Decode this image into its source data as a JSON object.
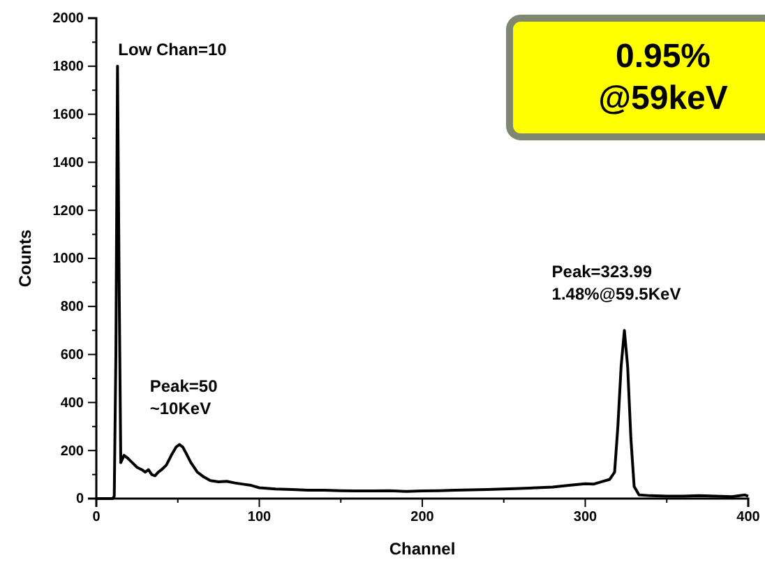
{
  "chart_data": {
    "type": "line",
    "xlabel": "Channel",
    "ylabel": "Counts",
    "xlim": [
      0,
      400
    ],
    "xticks": [
      0,
      100,
      200,
      300,
      400
    ],
    "ylim": [
      0,
      2000
    ],
    "yticks": [
      0,
      200,
      400,
      600,
      800,
      1000,
      1200,
      1400,
      1600,
      1800,
      2000
    ],
    "grid": false,
    "marker": "none",
    "line_style": "solid",
    "series": [
      {
        "color": "#000000",
        "x": [
          0,
          10,
          11,
          12,
          13,
          14,
          15,
          17,
          19,
          22,
          25,
          28,
          30,
          32,
          34,
          36,
          38,
          40,
          43,
          46,
          49,
          51,
          53,
          55,
          58,
          62,
          66,
          70,
          75,
          80,
          85,
          90,
          95,
          100,
          110,
          120,
          130,
          140,
          150,
          160,
          170,
          180,
          190,
          200,
          210,
          220,
          230,
          240,
          250,
          260,
          270,
          280,
          290,
          300,
          305,
          310,
          315,
          318,
          320,
          322,
          324,
          326,
          328,
          330,
          333,
          340,
          350,
          360,
          370,
          380,
          390,
          398,
          400
        ],
        "values": [
          0,
          0,
          10,
          600,
          1800,
          900,
          150,
          180,
          170,
          150,
          130,
          120,
          110,
          120,
          100,
          95,
          110,
          120,
          140,
          180,
          215,
          225,
          215,
          190,
          150,
          110,
          90,
          75,
          70,
          72,
          65,
          60,
          55,
          45,
          40,
          38,
          35,
          35,
          33,
          32,
          32,
          33,
          30,
          32,
          33,
          35,
          36,
          38,
          40,
          42,
          45,
          48,
          55,
          62,
          60,
          70,
          80,
          110,
          300,
          550,
          700,
          550,
          250,
          50,
          15,
          12,
          10,
          10,
          12,
          10,
          8,
          15,
          10
        ]
      }
    ],
    "annotations": [
      {
        "text": "Low Chan=10",
        "x": 10,
        "y": 1800
      },
      {
        "text": "Peak=50\n~10KeV",
        "x": 50,
        "y": 225
      },
      {
        "text": "Peak=323.99\n1.48%@59.5KeV",
        "x": 324,
        "y": 700
      },
      "0.95%\n@59keV"
    ]
  }
}
